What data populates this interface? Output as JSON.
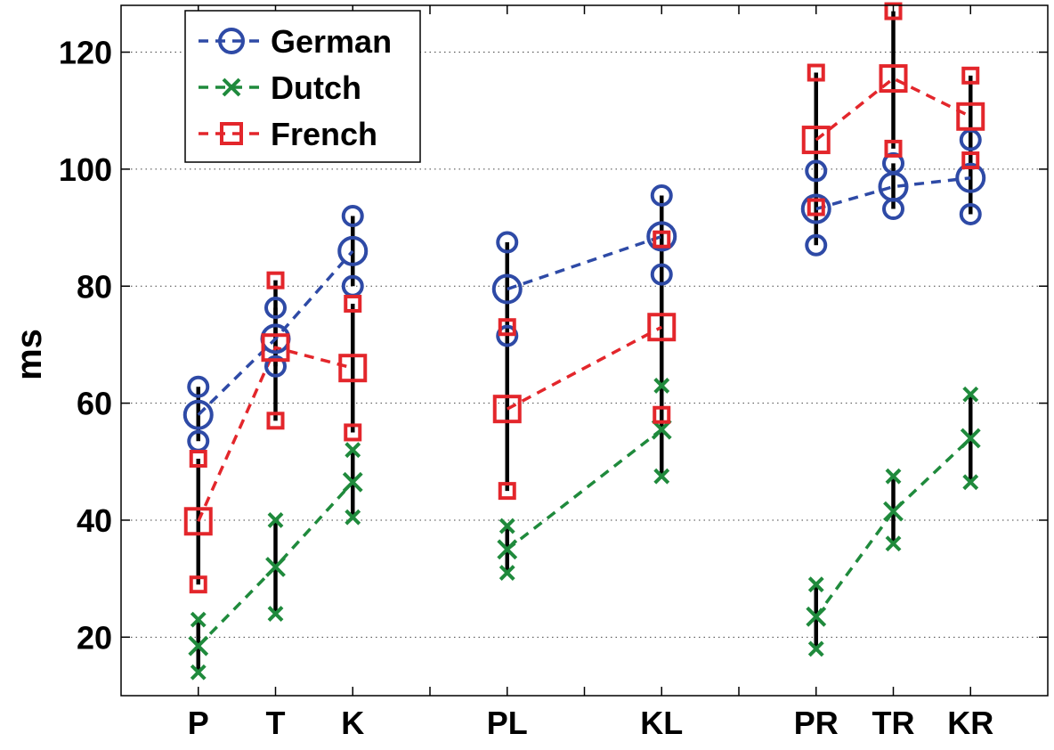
{
  "chart_data": {
    "type": "line",
    "title": "",
    "xlabel": "",
    "ylabel": "ms",
    "categories": [
      "P",
      "T",
      "K",
      "PL",
      "KL",
      "PR",
      "TR",
      "KR"
    ],
    "category_positions": [
      1,
      2,
      3,
      5,
      7,
      9,
      10,
      11
    ],
    "xlim": [
      0,
      12
    ],
    "ylim": [
      10,
      128
    ],
    "yticks": [
      20,
      40,
      60,
      80,
      100,
      120
    ],
    "grid": true,
    "legend_position": "top-left",
    "series": [
      {
        "name": "German",
        "color": "#2e4aa6",
        "marker": "circle",
        "groups": [
          {
            "values": [
              58,
              71,
              86
            ],
            "lower": [
              53.5,
              66.3,
              80.0
            ],
            "upper": [
              62.8,
              76.3,
              92.0
            ]
          },
          {
            "values": [
              79.5,
              88.5
            ],
            "lower": [
              71.5,
              82.0
            ],
            "upper": [
              87.5,
              95.5
            ]
          },
          {
            "values": [
              93.2,
              97.0,
              98.5
            ],
            "lower": [
              87.0,
              93.2,
              92.3
            ],
            "upper": [
              99.7,
              101.0,
              105.0
            ]
          }
        ]
      },
      {
        "name": "Dutch",
        "color": "#1f8a3c",
        "marker": "x",
        "groups": [
          {
            "values": [
              18.5,
              32.0,
              46.5
            ],
            "lower": [
              14.0,
              24.0,
              40.5
            ],
            "upper": [
              23.0,
              40.0,
              52.0
            ]
          },
          {
            "values": [
              35.0,
              55.5
            ],
            "lower": [
              31.0,
              47.5
            ],
            "upper": [
              39.0,
              63.0
            ]
          },
          {
            "values": [
              23.5,
              41.5,
              54.0
            ],
            "lower": [
              18.0,
              36.0,
              46.5
            ],
            "upper": [
              29.0,
              47.5,
              61.5
            ]
          }
        ]
      },
      {
        "name": "French",
        "color": "#e3262b",
        "marker": "square",
        "groups": [
          {
            "values": [
              39.8,
              69.5,
              66.0
            ],
            "lower": [
              29.0,
              57.0,
              55.0
            ],
            "upper": [
              50.5,
              81.0,
              77.0
            ]
          },
          {
            "values": [
              59.0,
              73.0
            ],
            "lower": [
              45.0,
              58.0
            ],
            "upper": [
              73.0,
              88.0
            ]
          },
          {
            "values": [
              105.0,
              115.5,
              109.0
            ],
            "lower": [
              93.5,
              103.5,
              101.5
            ],
            "upper": [
              116.5,
              127.0,
              116.0
            ]
          }
        ]
      }
    ]
  }
}
